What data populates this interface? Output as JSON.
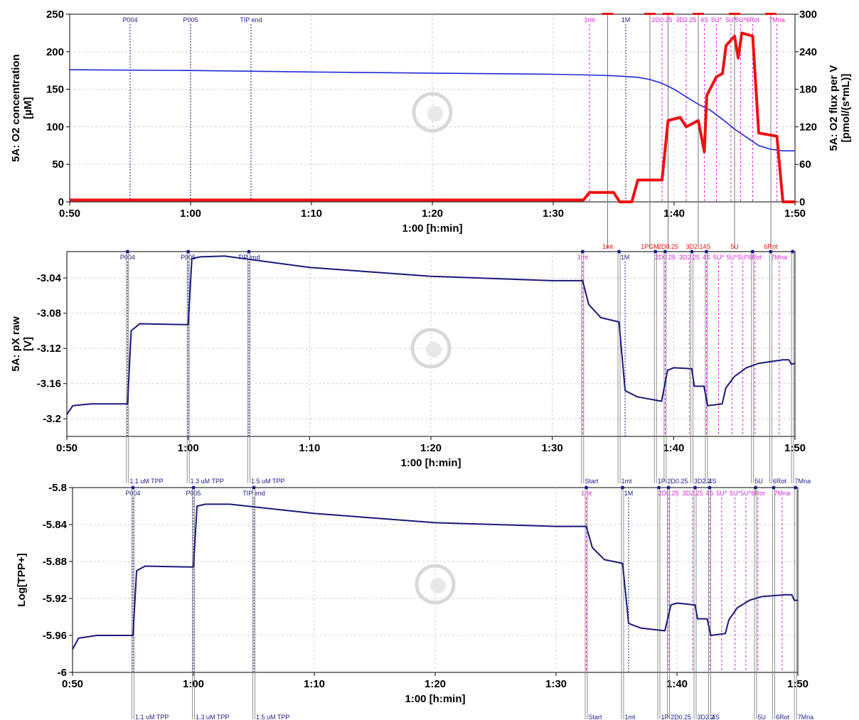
{
  "colors": {
    "o2_concentration": "#1f2bd6",
    "o2_flux": "#ee1111",
    "trace": "#1a1a7a",
    "marker_blue": "#1a1a8c",
    "marker_magenta": "#dd22dd",
    "marker_red": "#ee1111",
    "marker_grey": "#777777"
  },
  "chart_data": [
    {
      "type": "line",
      "xlabel": "1:00 [h:min]",
      "ylabel": "5A: O2 concentration\n[µM]",
      "y2label": "5A: O2 flux per V\n[pmol/(s*mL)]",
      "xlim": [
        "0:50",
        "1:50"
      ],
      "ylim": [
        0,
        250
      ],
      "y2lim": [
        0,
        300
      ],
      "xticks": [
        "0:50",
        "1:00",
        "1:10",
        "1:20",
        "1:30",
        "1:40",
        "1:50"
      ],
      "yticks": [
        "0",
        "50",
        "100",
        "150",
        "200",
        "250"
      ],
      "y2ticks": [
        "0",
        "60",
        "120",
        "180",
        "240",
        "300"
      ],
      "grid": true,
      "series": [
        {
          "name": "O2 concentration",
          "axis": "left",
          "points": [
            [
              "0:50",
              176
            ],
            [
              "1:00",
              175
            ],
            [
              "1:10",
              173
            ],
            [
              "1:20",
              171.5
            ],
            [
              "1:30",
              170
            ],
            [
              "1:33",
              169
            ],
            [
              "1:35",
              168
            ],
            [
              "1:37",
              166
            ],
            [
              "1:38",
              163
            ],
            [
              "1:39",
              158
            ],
            [
              "1:40",
              150
            ],
            [
              "1:41",
              140
            ],
            [
              "1:42",
              130
            ],
            [
              "1:43",
              122
            ],
            [
              "1:44",
              110
            ],
            [
              "1:45",
              97
            ],
            [
              "1:46",
              86
            ],
            [
              "1:47",
              75
            ],
            [
              "1:48",
              70
            ],
            [
              "1:49",
              68
            ],
            [
              "1:50",
              68
            ]
          ]
        },
        {
          "name": "O2 flux per V",
          "axis": "right",
          "points": [
            [
              "0:50",
              3
            ],
            [
              "1:32.5",
              3
            ],
            [
              "1:33",
              15
            ],
            [
              "1:35",
              15
            ],
            [
              "1:35.5",
              0
            ],
            [
              "1:36.5",
              0
            ],
            [
              "1:37",
              35
            ],
            [
              "1:39",
              35
            ],
            [
              "1:39.5",
              130
            ],
            [
              "1:40.5",
              135
            ],
            [
              "1:41",
              120
            ],
            [
              "1:42",
              130
            ],
            [
              "1:42.5",
              80
            ],
            [
              "1:42.7",
              170
            ],
            [
              "1:43.5",
              200
            ],
            [
              "1:44",
              205
            ],
            [
              "1:44.3",
              250
            ],
            [
              "1:45",
              265
            ],
            [
              "1:45.3",
              230
            ],
            [
              "1:45.6",
              270
            ],
            [
              "1:46.5",
              265
            ],
            [
              "1:47",
              110
            ],
            [
              "1:48.5",
              105
            ],
            [
              "1:49",
              0
            ],
            [
              "1:50",
              0
            ]
          ]
        }
      ],
      "top_markers_blue": [
        {
          "label": "P004",
          "x": "0:55"
        },
        {
          "label": "P005",
          "x": "1:00"
        },
        {
          "label": "TIP end",
          "x": "1:05"
        },
        {
          "label": "1M",
          "x": "1:36"
        }
      ],
      "top_markers_magenta": [
        {
          "label": "1mt",
          "x": "1:33"
        },
        {
          "label": "2D0.25",
          "x": "1:39"
        },
        {
          "label": "3D2.25",
          "x": "1:41"
        },
        {
          "label": "4S",
          "x": "1:42.5"
        },
        {
          "label": "5U*",
          "x": "1:43.5"
        },
        {
          "label": "5U*",
          "x": "1:44.7"
        },
        {
          "label": "5U*",
          "x": "1:45.5"
        },
        {
          "label": "6Rot",
          "x": "1:46.5"
        },
        {
          "label": "7Mna",
          "x": "1:48.5"
        }
      ],
      "bottom_markers_red": [
        {
          "label": "1mt",
          "x": "1:34.5"
        },
        {
          "label": "1PGM",
          "x": "1:38"
        },
        {
          "label": "2D0.25",
          "x": "1:39.5"
        },
        {
          "label": "3D2.14S",
          "x": "1:42"
        },
        {
          "label": "5U",
          "x": "1:45"
        },
        {
          "label": "6Rot",
          "x": "1:48"
        }
      ]
    },
    {
      "type": "line",
      "xlabel": "1:00 [h:min]",
      "ylabel": "5A: pX raw\n[V]",
      "xlim": [
        "0:50",
        "1:50"
      ],
      "ylim": [
        -3.22,
        -3.01
      ],
      "xticks": [
        "0:50",
        "1:00",
        "1:10",
        "1:20",
        "1:30",
        "1:40",
        "1:50"
      ],
      "yticks": [
        "-3.04",
        "-3.08",
        "-3.12",
        "-3.16",
        "-3.2"
      ],
      "grid": true,
      "series": [
        {
          "name": "pX raw",
          "points": [
            [
              "0:50",
              -3.195
            ],
            [
              "0:50.5",
              -3.185
            ],
            [
              "0:52",
              -3.183
            ],
            [
              "0:55",
              -3.183
            ],
            [
              "0:55.3",
              -3.1
            ],
            [
              "0:56",
              -3.092
            ],
            [
              "1:00",
              -3.093
            ],
            [
              "1:00.3",
              -3.018
            ],
            [
              "1:01",
              -3.016
            ],
            [
              "1:03",
              -3.015
            ],
            [
              "1:10",
              -3.028
            ],
            [
              "1:20",
              -3.038
            ],
            [
              "1:30",
              -3.043
            ],
            [
              "1:32.5",
              -3.043
            ],
            [
              "1:33",
              -3.07
            ],
            [
              "1:34",
              -3.085
            ],
            [
              "1:35.5",
              -3.09
            ],
            [
              "1:36",
              -3.168
            ],
            [
              "1:37",
              -3.175
            ],
            [
              "1:39",
              -3.18
            ],
            [
              "1:39.5",
              -3.145
            ],
            [
              "1:40",
              -3.142
            ],
            [
              "1:41.5",
              -3.143
            ],
            [
              "1:41.7",
              -3.163
            ],
            [
              "1:42.5",
              -3.163
            ],
            [
              "1:42.8",
              -3.185
            ],
            [
              "1:44",
              -3.183
            ],
            [
              "1:44.3",
              -3.165
            ],
            [
              "1:45",
              -3.152
            ],
            [
              "1:46",
              -3.142
            ],
            [
              "1:47",
              -3.137
            ],
            [
              "1:49",
              -3.133
            ],
            [
              "1:49.5",
              -3.133
            ],
            [
              "1:49.7",
              -3.138
            ],
            [
              "1:50",
              -3.137
            ]
          ]
        }
      ],
      "top_markers_blue": [
        {
          "label": "P004",
          "x": "0:55"
        },
        {
          "label": "P005",
          "x": "1:00"
        },
        {
          "label": "TIP end",
          "x": "1:05"
        },
        {
          "label": "1M",
          "x": "1:36"
        }
      ],
      "top_markers_magenta": [
        {
          "label": "1mt",
          "x": "1:32.5"
        },
        {
          "label": "2D0.25",
          "x": "1:39.3"
        },
        {
          "label": "3D2.25",
          "x": "1:41.3"
        },
        {
          "label": "4S",
          "x": "1:42.7"
        },
        {
          "label": "5U*",
          "x": "1:43.7"
        },
        {
          "label": "5U*",
          "x": "1:44.8"
        },
        {
          "label": "5U*",
          "x": "1:45.7"
        },
        {
          "label": "6Rot",
          "x": "1:46.7"
        },
        {
          "label": "7Mna",
          "x": "1:48.7"
        }
      ],
      "bottom_markers_blue": [
        {
          "label": "1.1 uM TPP",
          "x": "0:55"
        },
        {
          "label": "1.3 uM TPP",
          "x": "1:00"
        },
        {
          "label": "1.5 uM TPP",
          "x": "1:05"
        },
        {
          "label": "Start",
          "x": "1:32.5"
        },
        {
          "label": "1mt",
          "x": "1:35.5"
        },
        {
          "label": "1Pi",
          "x": "1:38.5"
        },
        {
          "label": "2D0.25",
          "x": "1:39.3"
        },
        {
          "label": "3D2.2",
          "x": "1:41.5"
        },
        {
          "label": "4S",
          "x": "1:42.7"
        },
        {
          "label": "5U",
          "x": "1:46.5"
        },
        {
          "label": "6Rot",
          "x": "1:48"
        },
        {
          "label": "7Mna",
          "x": "1:49.8"
        }
      ]
    },
    {
      "type": "line",
      "xlabel": "1:00 [h:min]",
      "ylabel": "Log[TPP+]",
      "xlim": [
        "0:50",
        "1:50"
      ],
      "ylim": [
        -6,
        -5.8
      ],
      "xticks": [
        "0:50",
        "1:00",
        "1:10",
        "1:20",
        "1:30",
        "1:40",
        "1:50"
      ],
      "yticks": [
        "-5.8",
        "-5.84",
        "-5.88",
        "-5.92",
        "-5.96",
        "-6"
      ],
      "grid": true,
      "series": [
        {
          "name": "Log[TPP+]",
          "points": [
            [
              "0:50",
              -5.975
            ],
            [
              "0:50.5",
              -5.963
            ],
            [
              "0:52",
              -5.96
            ],
            [
              "0:55",
              -5.96
            ],
            [
              "0:55.3",
              -5.89
            ],
            [
              "0:56",
              -5.885
            ],
            [
              "1:00",
              -5.886
            ],
            [
              "1:00.3",
              -5.82
            ],
            [
              "1:01",
              -5.818
            ],
            [
              "1:03",
              -5.818
            ],
            [
              "1:10",
              -5.828
            ],
            [
              "1:20",
              -5.838
            ],
            [
              "1:30",
              -5.842
            ],
            [
              "1:32.5",
              -5.842
            ],
            [
              "1:33",
              -5.865
            ],
            [
              "1:34",
              -5.878
            ],
            [
              "1:35.5",
              -5.882
            ],
            [
              "1:36",
              -5.947
            ],
            [
              "1:37",
              -5.952
            ],
            [
              "1:39",
              -5.955
            ],
            [
              "1:39.5",
              -5.927
            ],
            [
              "1:40",
              -5.925
            ],
            [
              "1:41.5",
              -5.927
            ],
            [
              "1:41.7",
              -5.942
            ],
            [
              "1:42.5",
              -5.942
            ],
            [
              "1:42.8",
              -5.96
            ],
            [
              "1:44",
              -5.958
            ],
            [
              "1:44.3",
              -5.943
            ],
            [
              "1:45",
              -5.93
            ],
            [
              "1:46",
              -5.922
            ],
            [
              "1:47",
              -5.918
            ],
            [
              "1:49",
              -5.916
            ],
            [
              "1:49.5",
              -5.916
            ],
            [
              "1:49.7",
              -5.922
            ],
            [
              "1:50",
              -5.922
            ]
          ]
        }
      ],
      "top_markers_blue": [
        {
          "label": "P004",
          "x": "0:55"
        },
        {
          "label": "P005",
          "x": "1:00"
        },
        {
          "label": "TIP end",
          "x": "1:05"
        },
        {
          "label": "1M",
          "x": "1:36"
        }
      ],
      "top_markers_magenta": [
        {
          "label": "1mt",
          "x": "1:32.5"
        },
        {
          "label": "2D0.25",
          "x": "1:39.3"
        },
        {
          "label": "3D2.25",
          "x": "1:41.3"
        },
        {
          "label": "4S",
          "x": "1:42.7"
        },
        {
          "label": "5U*",
          "x": "1:43.7"
        },
        {
          "label": "5U*",
          "x": "1:44.8"
        },
        {
          "label": "5U*",
          "x": "1:45.7"
        },
        {
          "label": "6Rot",
          "x": "1:46.7"
        },
        {
          "label": "7Mna",
          "x": "1:48.7"
        }
      ],
      "bottom_markers_blue": [
        {
          "label": "1.1 uM TPP",
          "x": "0:55"
        },
        {
          "label": "1.3 uM TPP",
          "x": "1:00"
        },
        {
          "label": "1.5 uM TPP",
          "x": "1:05"
        },
        {
          "label": "Start",
          "x": "1:32.5"
        },
        {
          "label": "1mt",
          "x": "1:35.5"
        },
        {
          "label": "1Pi",
          "x": "1:38.5"
        },
        {
          "label": "2D0.25",
          "x": "1:39.3"
        },
        {
          "label": "3D2.2",
          "x": "1:41.5"
        },
        {
          "label": "4S",
          "x": "1:42.7"
        },
        {
          "label": "5U",
          "x": "1:46.5"
        },
        {
          "label": "6Rot",
          "x": "1:48"
        },
        {
          "label": "7Mna",
          "x": "1:49.8"
        }
      ]
    }
  ]
}
